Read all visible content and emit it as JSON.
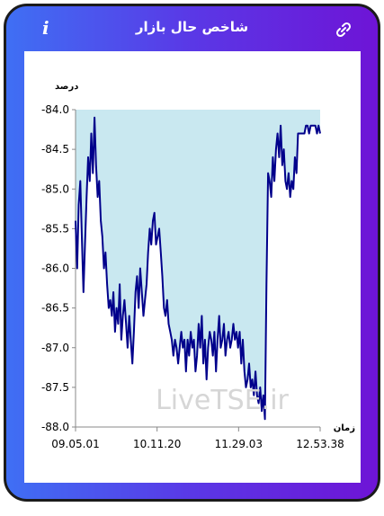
{
  "header": {
    "title": "شاخص حال بازار",
    "info_icon": "info-icon",
    "link_icon": "link-icon"
  },
  "colors": {
    "accent_start": "#3f6ff4",
    "accent_end": "#6e14d6",
    "line": "#00008b",
    "fill": "#c9e8f0"
  },
  "watermark": "LiveTSE.ir",
  "chart_data": {
    "type": "line",
    "title": "",
    "xlabel": "زمان",
    "ylabel": "درصد",
    "ylim": [
      -88.0,
      -84.0
    ],
    "yticks": [
      "-84.0",
      "-84.5",
      "-85.0",
      "-85.5",
      "-86.0",
      "-86.5",
      "-87.0",
      "-87.5",
      "-88.0"
    ],
    "xticks": [
      "09.05.01",
      "10.11.20",
      "11.29.03",
      "12.53.38"
    ],
    "x_range": [
      "09.05.01",
      "12.53.38"
    ],
    "grid": false,
    "fill_to_top": true,
    "y": [
      -85.4,
      -86.0,
      -85.2,
      -84.9,
      -85.6,
      -86.3,
      -85.7,
      -85.1,
      -84.6,
      -84.9,
      -84.3,
      -84.8,
      -84.1,
      -84.7,
      -85.1,
      -84.9,
      -85.4,
      -85.6,
      -86.0,
      -85.8,
      -86.2,
      -86.5,
      -86.4,
      -86.6,
      -86.3,
      -86.8,
      -86.5,
      -86.7,
      -86.2,
      -86.9,
      -86.6,
      -86.4,
      -86.7,
      -87.0,
      -86.6,
      -86.9,
      -87.2,
      -86.8,
      -86.3,
      -86.1,
      -86.5,
      -86.0,
      -86.3,
      -86.6,
      -86.4,
      -86.2,
      -85.8,
      -85.5,
      -85.7,
      -85.4,
      -85.3,
      -85.7,
      -85.6,
      -85.5,
      -85.8,
      -86.1,
      -86.5,
      -86.6,
      -86.4,
      -86.7,
      -86.8,
      -86.9,
      -87.1,
      -86.9,
      -87.0,
      -87.2,
      -87.0,
      -86.8,
      -87.0,
      -86.9,
      -87.3,
      -86.9,
      -87.1,
      -86.8,
      -87.0,
      -86.9,
      -87.3,
      -87.1,
      -86.7,
      -87.0,
      -86.6,
      -87.2,
      -86.9,
      -87.4,
      -87.0,
      -86.8,
      -86.9,
      -87.1,
      -86.8,
      -87.3,
      -86.9,
      -86.6,
      -87.0,
      -86.9,
      -86.7,
      -87.1,
      -86.9,
      -86.8,
      -87.0,
      -86.9,
      -86.7,
      -86.9,
      -86.8,
      -87.0,
      -86.8,
      -87.2,
      -86.9,
      -87.3,
      -87.5,
      -87.4,
      -87.2,
      -87.5,
      -87.4,
      -87.6,
      -87.3,
      -87.6,
      -87.7,
      -87.5,
      -87.8,
      -87.6,
      -87.9,
      -86.2,
      -84.8,
      -84.9,
      -85.1,
      -84.6,
      -84.9,
      -84.5,
      -84.3,
      -84.6,
      -84.2,
      -84.7,
      -84.5,
      -84.9,
      -85.0,
      -84.8,
      -85.1,
      -84.9,
      -85.0,
      -84.6,
      -84.8,
      -84.3,
      -84.3,
      -84.3,
      -84.3,
      -84.3,
      -84.2,
      -84.2,
      -84.3,
      -84.2,
      -84.2,
      -84.2,
      -84.2,
      -84.3,
      -84.2,
      -84.3
    ]
  }
}
